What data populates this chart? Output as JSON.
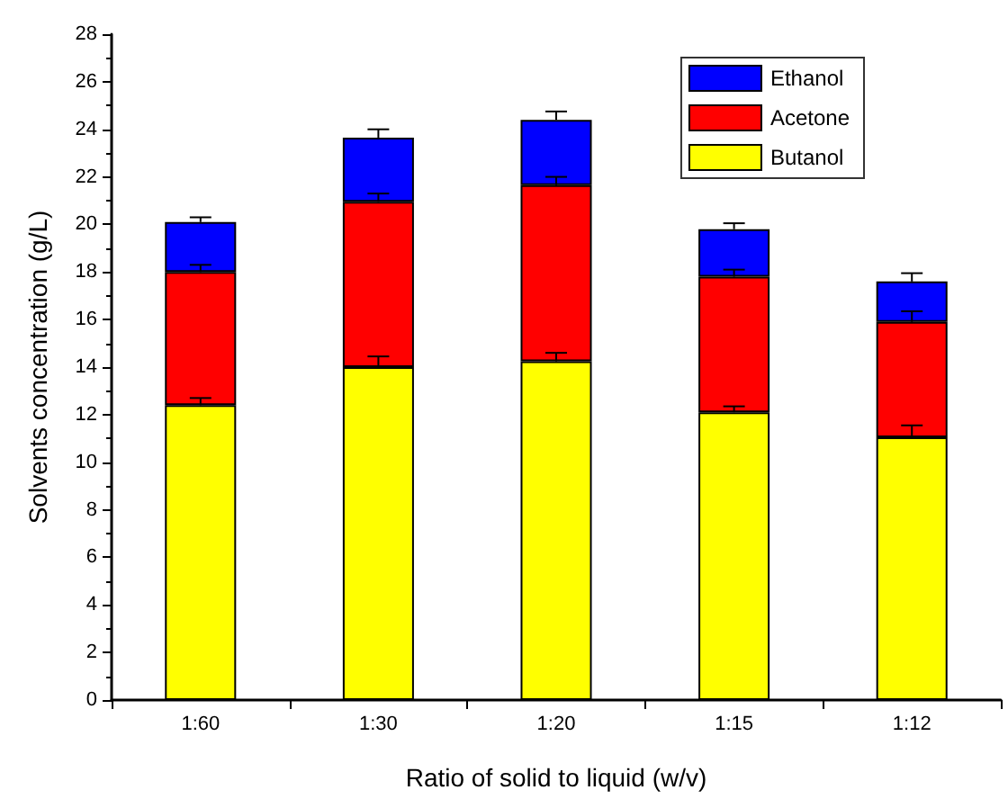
{
  "chart_data": {
    "type": "bar",
    "stacked": true,
    "xlabel": "Ratio of solid to liquid (w/v)",
    "ylabel": "Solvents concentration (g/L)",
    "categories": [
      "1:60",
      "1:30",
      "1:20",
      "1:15",
      "1:12"
    ],
    "series": [
      {
        "name": "Butanol",
        "color": "#ffff00",
        "values": [
          12.4,
          14.0,
          14.25,
          12.1,
          11.05
        ],
        "errors": [
          [
            12.4,
            12.7
          ],
          [
            14.0,
            14.45
          ],
          [
            14.25,
            14.6
          ],
          [
            12.1,
            12.35
          ],
          [
            11.05,
            11.55
          ]
        ]
      },
      {
        "name": "Acetone",
        "color": "#ff0000",
        "values": [
          5.6,
          6.95,
          7.4,
          5.7,
          4.85
        ],
        "errors": [
          [
            18.0,
            18.3
          ],
          [
            20.95,
            21.3
          ],
          [
            21.65,
            22.0
          ],
          [
            17.8,
            18.1
          ],
          [
            15.9,
            16.35
          ]
        ]
      },
      {
        "name": "Ethanol",
        "color": "#0000ff",
        "values": [
          2.1,
          2.7,
          2.75,
          2.0,
          1.7
        ],
        "errors": [
          [
            20.1,
            20.3
          ],
          [
            23.65,
            24.0
          ],
          [
            24.4,
            24.75
          ],
          [
            19.8,
            20.05
          ],
          [
            17.6,
            17.95
          ]
        ]
      }
    ],
    "ylim": [
      0,
      28
    ],
    "yticks": [
      0,
      2,
      4,
      6,
      8,
      10,
      12,
      14,
      16,
      18,
      20,
      22,
      24,
      26,
      28
    ],
    "grid": false,
    "legend": "top right"
  }
}
